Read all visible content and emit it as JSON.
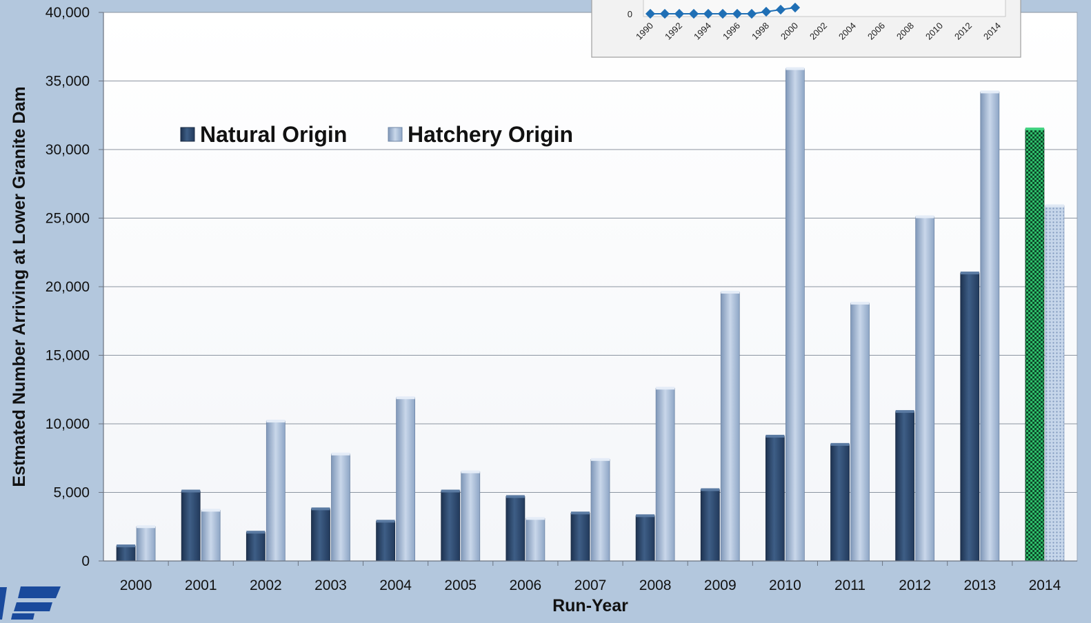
{
  "chart_data": [
    {
      "type": "bar",
      "title": "",
      "xlabel": "Run-Year",
      "ylabel": "Estmated Number Arriving at Lower Granite Dam",
      "categories": [
        "2000",
        "2001",
        "2002",
        "2003",
        "2004",
        "2005",
        "2006",
        "2007",
        "2008",
        "2009",
        "2010",
        "2011",
        "2012",
        "2013",
        "2014"
      ],
      "ylim": [
        0,
        40000
      ],
      "yticks": [
        0,
        5000,
        10000,
        15000,
        20000,
        25000,
        30000,
        35000,
        40000
      ],
      "ytick_labels": [
        "0",
        "5,000",
        "10,000",
        "15,000",
        "20,000",
        "25,000",
        "30,000",
        "35,000",
        "40,000"
      ],
      "grid": true,
      "legend": "top-left",
      "series": [
        {
          "name": "Natural Origin",
          "color": "#2f4a6b",
          "values": [
            1100,
            5100,
            2100,
            3800,
            2900,
            5100,
            4700,
            3500,
            3300,
            5200,
            9100,
            8500,
            10900,
            21000,
            31500
          ]
        },
        {
          "name": "Hatchery Origin",
          "color": "#a9bdd8",
          "values": [
            2500,
            3700,
            10200,
            7800,
            11900,
            6500,
            3100,
            7400,
            12600,
            19600,
            35900,
            18800,
            25100,
            34200,
            25900
          ]
        }
      ],
      "highlight": {
        "category": "2014",
        "natural_color": "#1f8a4c",
        "hatchery_color": "#b9cde4"
      }
    },
    {
      "type": "line",
      "title": "",
      "x": [
        1990,
        1991,
        1992,
        1993,
        1994,
        1995,
        1996,
        1997,
        1998,
        1999,
        2000
      ],
      "values": [
        0,
        0,
        0,
        0,
        0,
        0,
        0,
        0,
        0,
        0,
        0
      ],
      "xtick_labels": [
        "1990",
        "1992",
        "1994",
        "1996",
        "1998",
        "2000",
        "2002",
        "2004",
        "2006",
        "2008",
        "2010",
        "2012",
        "2014"
      ],
      "ytick_labels": [
        "0"
      ],
      "series_color": "#1f6fb5"
    }
  ],
  "logo": {
    "color": "#1a4a9c"
  }
}
